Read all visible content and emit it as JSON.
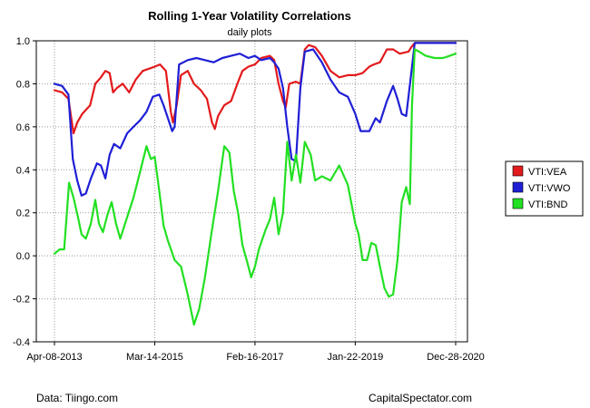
{
  "chart_data": {
    "type": "line",
    "title": "Rolling 1-Year Volatility Correlations",
    "subtitle": "daily plots",
    "xlabel": "",
    "ylabel": "",
    "x_ticks": [
      "Apr-08-2013",
      "Mar-14-2015",
      "Feb-16-2017",
      "Jan-22-2019",
      "Dec-28-2020"
    ],
    "y_ticks": [
      "1.0",
      "0.8",
      "0.6",
      "0.4",
      "0.2",
      "0.0",
      "-0.2",
      "-0.4"
    ],
    "ylim": [
      -0.4,
      1.0
    ],
    "xlim": [
      "2013-04-08",
      "2020-12-28"
    ],
    "grid": true,
    "legend_position": "right",
    "series": [
      {
        "name": "VTI:VEA",
        "color": "#e31a1c",
        "points": [
          [
            "2013-04-08",
            0.77
          ],
          [
            "2013-06-01",
            0.76
          ],
          [
            "2013-07-15",
            0.73
          ],
          [
            "2013-08-20",
            0.57
          ],
          [
            "2013-09-15",
            0.62
          ],
          [
            "2013-10-20",
            0.66
          ],
          [
            "2013-12-15",
            0.7
          ],
          [
            "2014-01-20",
            0.8
          ],
          [
            "2014-03-01",
            0.83
          ],
          [
            "2014-04-01",
            0.86
          ],
          [
            "2014-05-01",
            0.85
          ],
          [
            "2014-05-25",
            0.76
          ],
          [
            "2014-06-20",
            0.78
          ],
          [
            "2014-08-01",
            0.8
          ],
          [
            "2014-09-15",
            0.76
          ],
          [
            "2014-11-01",
            0.82
          ],
          [
            "2014-12-20",
            0.86
          ],
          [
            "2015-02-01",
            0.87
          ],
          [
            "2015-03-14",
            0.88
          ],
          [
            "2015-04-20",
            0.89
          ],
          [
            "2015-06-01",
            0.86
          ],
          [
            "2015-07-05",
            0.67
          ],
          [
            "2015-07-20",
            0.62
          ],
          [
            "2015-08-15",
            0.7
          ],
          [
            "2015-09-15",
            0.84
          ],
          [
            "2015-11-01",
            0.86
          ],
          [
            "2015-12-15",
            0.8
          ],
          [
            "2016-02-01",
            0.77
          ],
          [
            "2016-03-15",
            0.73
          ],
          [
            "2016-04-20",
            0.62
          ],
          [
            "2016-05-10",
            0.59
          ],
          [
            "2016-06-01",
            0.65
          ],
          [
            "2016-07-15",
            0.7
          ],
          [
            "2016-09-01",
            0.72
          ],
          [
            "2016-10-15",
            0.8
          ],
          [
            "2016-11-20",
            0.86
          ],
          [
            "2017-01-01",
            0.88
          ],
          [
            "2017-02-16",
            0.89
          ],
          [
            "2017-04-01",
            0.92
          ],
          [
            "2017-06-01",
            0.93
          ],
          [
            "2017-07-01",
            0.91
          ],
          [
            "2017-08-01",
            0.8
          ],
          [
            "2017-09-01",
            0.72
          ],
          [
            "2017-09-20",
            0.69
          ],
          [
            "2017-10-15",
            0.8
          ],
          [
            "2017-12-01",
            0.81
          ],
          [
            "2018-01-01",
            0.8
          ],
          [
            "2018-02-01",
            0.96
          ],
          [
            "2018-03-01",
            0.98
          ],
          [
            "2018-04-15",
            0.97
          ],
          [
            "2018-06-01",
            0.93
          ],
          [
            "2018-08-01",
            0.86
          ],
          [
            "2018-10-01",
            0.83
          ],
          [
            "2018-12-01",
            0.84
          ],
          [
            "2019-01-22",
            0.84
          ],
          [
            "2019-03-15",
            0.85
          ],
          [
            "2019-05-01",
            0.88
          ],
          [
            "2019-06-01",
            0.89
          ],
          [
            "2019-07-15",
            0.9
          ],
          [
            "2019-09-01",
            0.96
          ],
          [
            "2019-10-15",
            0.96
          ],
          [
            "2019-12-01",
            0.94
          ],
          [
            "2020-02-01",
            0.95
          ],
          [
            "2020-02-20",
            0.97
          ],
          [
            "2020-03-15",
            0.99
          ],
          [
            "2020-05-01",
            0.99
          ],
          [
            "2020-07-01",
            0.99
          ],
          [
            "2020-09-01",
            0.99
          ],
          [
            "2020-12-28",
            0.99
          ]
        ]
      },
      {
        "name": "VTI:VWO",
        "color": "#1f1fd6",
        "points": [
          [
            "2013-04-08",
            0.8
          ],
          [
            "2013-06-01",
            0.79
          ],
          [
            "2013-07-15",
            0.75
          ],
          [
            "2013-08-15",
            0.45
          ],
          [
            "2013-09-15",
            0.35
          ],
          [
            "2013-10-15",
            0.28
          ],
          [
            "2013-11-15",
            0.29
          ],
          [
            "2013-12-20",
            0.36
          ],
          [
            "2014-02-01",
            0.43
          ],
          [
            "2014-03-01",
            0.42
          ],
          [
            "2014-04-01",
            0.36
          ],
          [
            "2014-05-01",
            0.47
          ],
          [
            "2014-06-01",
            0.52
          ],
          [
            "2014-07-15",
            0.5
          ],
          [
            "2014-09-01",
            0.57
          ],
          [
            "2014-10-15",
            0.6
          ],
          [
            "2014-12-01",
            0.63
          ],
          [
            "2015-01-15",
            0.67
          ],
          [
            "2015-03-01",
            0.74
          ],
          [
            "2015-04-15",
            0.75
          ],
          [
            "2015-05-15",
            0.7
          ],
          [
            "2015-06-15",
            0.64
          ],
          [
            "2015-07-15",
            0.58
          ],
          [
            "2015-08-01",
            0.6
          ],
          [
            "2015-09-01",
            0.89
          ],
          [
            "2015-11-01",
            0.91
          ],
          [
            "2016-01-01",
            0.92
          ],
          [
            "2016-03-01",
            0.91
          ],
          [
            "2016-05-01",
            0.9
          ],
          [
            "2016-07-01",
            0.92
          ],
          [
            "2016-09-01",
            0.93
          ],
          [
            "2016-11-01",
            0.94
          ],
          [
            "2017-01-01",
            0.92
          ],
          [
            "2017-02-16",
            0.93
          ],
          [
            "2017-04-01",
            0.91
          ],
          [
            "2017-06-01",
            0.92
          ],
          [
            "2017-07-01",
            0.9
          ],
          [
            "2017-08-01",
            0.87
          ],
          [
            "2017-09-01",
            0.78
          ],
          [
            "2017-10-01",
            0.6
          ],
          [
            "2017-11-01",
            0.45
          ],
          [
            "2017-12-01",
            0.44
          ],
          [
            "2018-01-01",
            0.78
          ],
          [
            "2018-02-01",
            0.95
          ],
          [
            "2018-04-01",
            0.96
          ],
          [
            "2018-06-01",
            0.9
          ],
          [
            "2018-08-01",
            0.82
          ],
          [
            "2018-10-01",
            0.76
          ],
          [
            "2018-12-01",
            0.74
          ],
          [
            "2019-01-22",
            0.66
          ],
          [
            "2019-03-01",
            0.58
          ],
          [
            "2019-05-01",
            0.58
          ],
          [
            "2019-06-15",
            0.64
          ],
          [
            "2019-07-15",
            0.62
          ],
          [
            "2019-09-01",
            0.72
          ],
          [
            "2019-10-15",
            0.79
          ],
          [
            "2019-11-15",
            0.73
          ],
          [
            "2019-12-15",
            0.66
          ],
          [
            "2020-01-15",
            0.65
          ],
          [
            "2020-02-20",
            0.85
          ],
          [
            "2020-03-15",
            0.99
          ],
          [
            "2020-05-01",
            0.99
          ],
          [
            "2020-07-01",
            0.99
          ],
          [
            "2020-09-01",
            0.99
          ],
          [
            "2020-12-28",
            0.99
          ]
        ]
      },
      {
        "name": "VTI:BND",
        "color": "#22e022",
        "points": [
          [
            "2013-04-08",
            0.01
          ],
          [
            "2013-05-15",
            0.03
          ],
          [
            "2013-06-15",
            0.03
          ],
          [
            "2013-07-20",
            0.34
          ],
          [
            "2013-08-20",
            0.27
          ],
          [
            "2013-09-20",
            0.18
          ],
          [
            "2013-10-15",
            0.1
          ],
          [
            "2013-11-15",
            0.08
          ],
          [
            "2013-12-20",
            0.15
          ],
          [
            "2014-01-20",
            0.26
          ],
          [
            "2014-02-15",
            0.15
          ],
          [
            "2014-03-15",
            0.11
          ],
          [
            "2014-04-15",
            0.19
          ],
          [
            "2014-05-15",
            0.25
          ],
          [
            "2014-06-15",
            0.15
          ],
          [
            "2014-07-15",
            0.08
          ],
          [
            "2014-09-01",
            0.18
          ],
          [
            "2014-10-15",
            0.27
          ],
          [
            "2014-12-01",
            0.39
          ],
          [
            "2015-01-15",
            0.51
          ],
          [
            "2015-02-15",
            0.45
          ],
          [
            "2015-03-14",
            0.46
          ],
          [
            "2015-04-15",
            0.3
          ],
          [
            "2015-05-15",
            0.14
          ],
          [
            "2015-06-15",
            0.07
          ],
          [
            "2015-08-01",
            -0.02
          ],
          [
            "2015-09-15",
            -0.05
          ],
          [
            "2015-11-01",
            -0.18
          ],
          [
            "2015-12-15",
            -0.32
          ],
          [
            "2016-01-20",
            -0.25
          ],
          [
            "2016-03-01",
            -0.1
          ],
          [
            "2016-04-15",
            0.1
          ],
          [
            "2016-06-01",
            0.3
          ],
          [
            "2016-07-15",
            0.51
          ],
          [
            "2016-08-20",
            0.48
          ],
          [
            "2016-09-20",
            0.3
          ],
          [
            "2016-10-20",
            0.2
          ],
          [
            "2016-11-20",
            0.05
          ],
          [
            "2016-12-20",
            -0.02
          ],
          [
            "2017-01-20",
            -0.1
          ],
          [
            "2017-02-16",
            -0.05
          ],
          [
            "2017-03-15",
            0.03
          ],
          [
            "2017-05-01",
            0.12
          ],
          [
            "2017-06-01",
            0.17
          ],
          [
            "2017-07-01",
            0.27
          ],
          [
            "2017-08-01",
            0.1
          ],
          [
            "2017-09-01",
            0.2
          ],
          [
            "2017-10-01",
            0.53
          ],
          [
            "2017-11-01",
            0.35
          ],
          [
            "2017-12-01",
            0.47
          ],
          [
            "2018-01-01",
            0.34
          ],
          [
            "2018-02-01",
            0.53
          ],
          [
            "2018-03-15",
            0.47
          ],
          [
            "2018-04-15",
            0.35
          ],
          [
            "2018-06-01",
            0.37
          ],
          [
            "2018-08-01",
            0.35
          ],
          [
            "2018-10-01",
            0.42
          ],
          [
            "2018-12-01",
            0.33
          ],
          [
            "2019-01-22",
            0.15
          ],
          [
            "2019-02-15",
            0.1
          ],
          [
            "2019-03-15",
            -0.02
          ],
          [
            "2019-04-15",
            -0.02
          ],
          [
            "2019-05-15",
            0.06
          ],
          [
            "2019-06-15",
            0.05
          ],
          [
            "2019-07-15",
            -0.05
          ],
          [
            "2019-08-15",
            -0.15
          ],
          [
            "2019-09-15",
            -0.19
          ],
          [
            "2019-10-15",
            -0.18
          ],
          [
            "2019-11-15",
            -0.02
          ],
          [
            "2019-12-15",
            0.25
          ],
          [
            "2020-01-15",
            0.32
          ],
          [
            "2020-02-10",
            0.24
          ],
          [
            "2020-02-25",
            0.7
          ],
          [
            "2020-03-15",
            0.96
          ],
          [
            "2020-04-15",
            0.95
          ],
          [
            "2020-06-01",
            0.93
          ],
          [
            "2020-08-01",
            0.92
          ],
          [
            "2020-10-01",
            0.92
          ],
          [
            "2020-11-15",
            0.93
          ],
          [
            "2020-12-28",
            0.94
          ]
        ]
      }
    ]
  },
  "footer": {
    "source": "Data: Tiingo.com",
    "credit": "CapitalSpectator.com"
  }
}
